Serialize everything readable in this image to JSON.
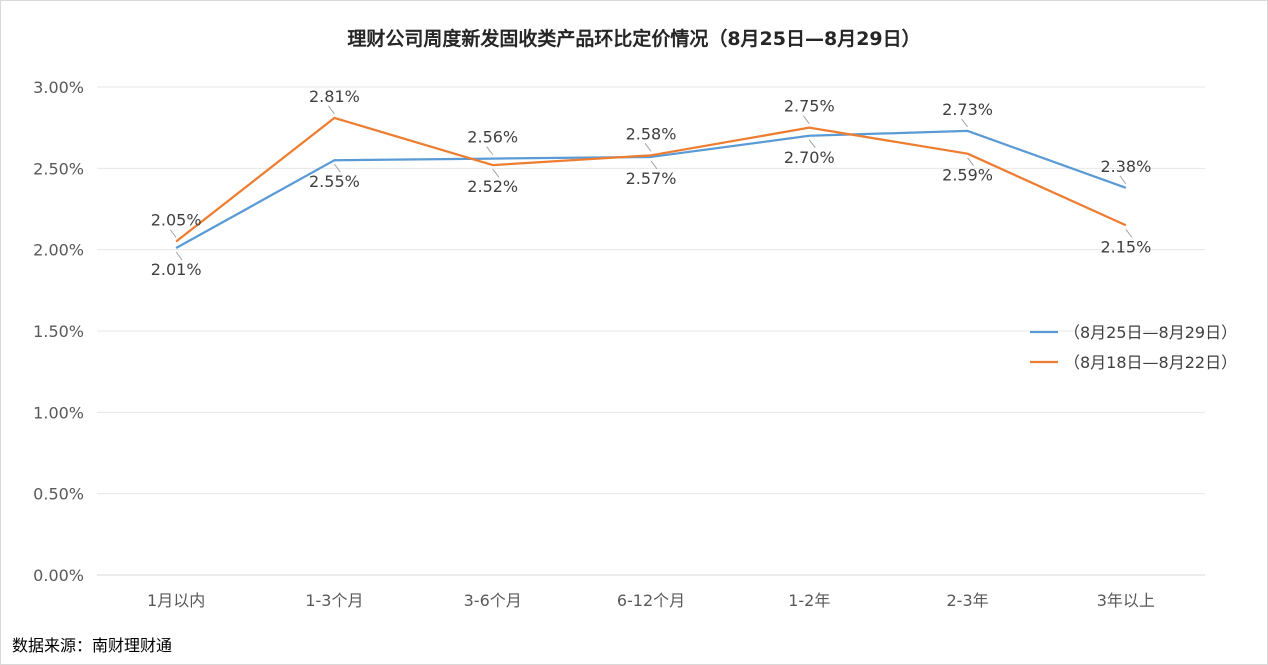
{
  "source": "数据来源：南财理财通",
  "chart_data": {
    "type": "line",
    "title": "理财公司周度新发固收类产品环比定价情况（8月25日—8月29日）",
    "categories": [
      "1月以内",
      "1-3个月",
      "3-6个月",
      "6-12个月",
      "1-2年",
      "2-3年",
      "3年以上"
    ],
    "yticks": [
      "0.00%",
      "0.50%",
      "1.00%",
      "1.50%",
      "2.00%",
      "2.50%",
      "3.00%"
    ],
    "ylim": [
      0,
      3
    ],
    "grid": true,
    "legend_position": "right",
    "series": [
      {
        "name": "（8月25日—8月29日）",
        "color": "#5b9bd5",
        "values": [
          2.01,
          2.55,
          2.56,
          2.57,
          2.7,
          2.73,
          2.38
        ],
        "labels": [
          "2.01%",
          "2.55%",
          "2.56%",
          "2.57%",
          "2.70%",
          "2.73%",
          "2.38%"
        ]
      },
      {
        "name": "（8月18日—8月22日）",
        "color": "#ed7d31",
        "values": [
          2.05,
          2.81,
          2.52,
          2.58,
          2.75,
          2.59,
          2.15
        ],
        "labels": [
          "2.05%",
          "2.81%",
          "2.52%",
          "2.58%",
          "2.75%",
          "2.59%",
          "2.15%"
        ]
      }
    ]
  }
}
